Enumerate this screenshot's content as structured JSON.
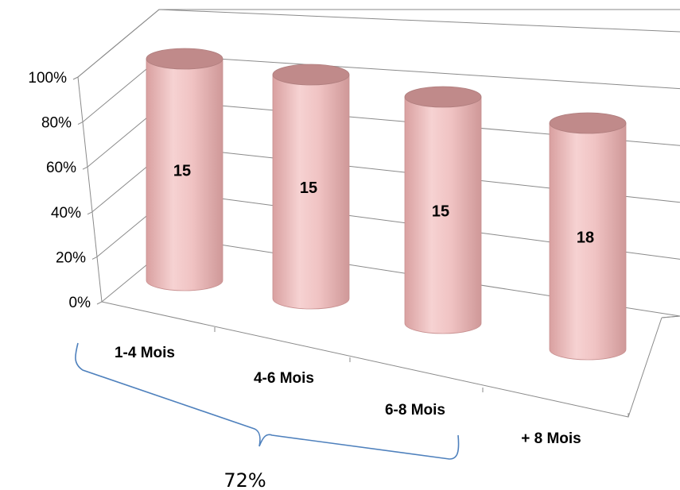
{
  "chart_data": {
    "type": "bar",
    "style": "3d-cylinder",
    "categories": [
      "1-4 Mois",
      "4-6 Mois",
      "6-8 Mois",
      "+ 8 Mois"
    ],
    "values": [
      100,
      100,
      100,
      100
    ],
    "data_labels": [
      "15",
      "15",
      "15",
      "18"
    ],
    "title": "",
    "xlabel": "",
    "ylabel": "",
    "ylim": [
      0,
      100
    ],
    "yticks": [
      "0%",
      "20%",
      "40%",
      "60%",
      "80%",
      "100%"
    ],
    "grid": true,
    "legend": "none",
    "colors": {
      "bar_side": "#e8b4b4",
      "bar_top": "#c08a8a",
      "bracket": "#4f81bd"
    },
    "annotation": {
      "text": "72%",
      "spans": [
        "1-4 Mois",
        "4-6 Mois",
        "6-8 Mois"
      ]
    }
  }
}
